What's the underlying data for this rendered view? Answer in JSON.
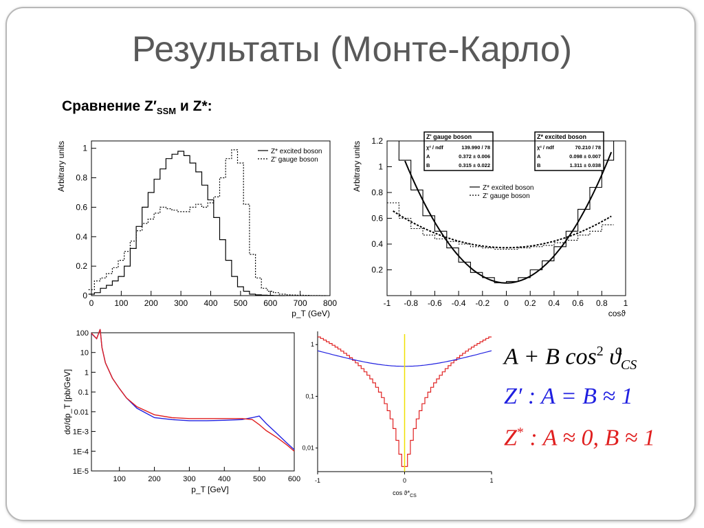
{
  "slide": {
    "title": "Результаты (Монте-Карло)",
    "subtitle_pre": "Сравнение Z′",
    "subtitle_sub": "SSM",
    "subtitle_post": "  и Z*:"
  },
  "formulas": {
    "line1": "A + B cos",
    "line1_sup": "2",
    "line1_theta": "ϑ",
    "line1_sub": "CS",
    "line2": "Z′ : A = B ≈ 1",
    "line2_color": "#1f1fe0",
    "line3_pre": "Z",
    "line3_sup": "*",
    "line3_post": " : A ≈ 0, B ≈ 1",
    "line3_color": "#e01f1f"
  },
  "chart_data": [
    {
      "id": "pt",
      "type": "line",
      "xlabel": "p_T (GeV)",
      "ylabel": "Arbitrary units",
      "xlim": [
        0,
        800
      ],
      "ylim": [
        0,
        1.05
      ],
      "xticks": [
        "0",
        "100",
        "200",
        "300",
        "400",
        "500",
        "600",
        "700",
        "800"
      ],
      "yticks": [
        "0",
        "0.2",
        "0.4",
        "0.6",
        "0.8",
        "1"
      ],
      "legend": [
        "Z* excited boson",
        "Z' gauge boson"
      ],
      "series": [
        {
          "name": "Z* excited boson",
          "style": "solid",
          "x": [
            0,
            20,
            40,
            60,
            80,
            100,
            120,
            140,
            160,
            180,
            200,
            220,
            240,
            260,
            280,
            300,
            320,
            340,
            360,
            380,
            400,
            420,
            440,
            460,
            480,
            500,
            520,
            540,
            560,
            580,
            600,
            620,
            640
          ],
          "values": [
            0.01,
            0.02,
            0.05,
            0.07,
            0.1,
            0.13,
            0.2,
            0.32,
            0.47,
            0.6,
            0.7,
            0.79,
            0.86,
            0.93,
            0.96,
            0.98,
            0.95,
            0.9,
            0.84,
            0.75,
            0.65,
            0.53,
            0.38,
            0.24,
            0.13,
            0.06,
            0.03,
            0.01,
            0.005,
            0.003,
            0.002,
            0.001,
            0
          ]
        },
        {
          "name": "Z' gauge boson",
          "style": "dashed",
          "x": [
            0,
            20,
            40,
            60,
            80,
            100,
            120,
            140,
            160,
            180,
            200,
            220,
            240,
            260,
            280,
            300,
            320,
            340,
            360,
            380,
            400,
            420,
            440,
            460,
            480,
            500,
            520,
            540,
            560,
            580,
            600,
            620,
            640,
            660,
            680,
            700,
            720,
            740,
            760,
            780
          ],
          "values": [
            0.04,
            0.1,
            0.12,
            0.15,
            0.19,
            0.24,
            0.3,
            0.37,
            0.44,
            0.49,
            0.52,
            0.56,
            0.6,
            0.59,
            0.58,
            0.57,
            0.57,
            0.6,
            0.62,
            0.6,
            0.63,
            0.67,
            0.8,
            0.93,
            0.99,
            0.9,
            0.62,
            0.28,
            0.12,
            0.05,
            0.03,
            0.02,
            0.01,
            0.005,
            0.004,
            0.003,
            0.002,
            0.001,
            0.001,
            0
          ]
        }
      ]
    },
    {
      "id": "cos",
      "type": "line",
      "xlabel": "cosϑ",
      "ylabel": "Arbitrary units",
      "xlim": [
        -1,
        1
      ],
      "ylim": [
        0,
        1.2
      ],
      "xticks": [
        "-1",
        "-0.8",
        "-0.6",
        "-0.4",
        "-0.2",
        "0",
        "0.2",
        "0.4",
        "0.6",
        "0.8",
        "1"
      ],
      "yticks": [
        "0.2",
        "0.4",
        "0.6",
        "0.8",
        "1",
        "1.2"
      ],
      "legend": [
        "Z* excited boson",
        "Z' gauge boson"
      ],
      "fit_boxes": [
        {
          "title": "Z' gauge boson",
          "rows": [
            [
              "χ² / ndf",
              "139.990 / 78"
            ],
            [
              "A",
              "0.372 ± 0.006"
            ],
            [
              "B",
              "0.315 ± 0.022"
            ]
          ]
        },
        {
          "title": "Z* excited boson",
          "rows": [
            [
              "χ² / ndf",
              "70.210 / 78"
            ],
            [
              "A",
              "0.098 ± 0.007"
            ],
            [
              "B",
              "1.311 ± 0.038"
            ]
          ]
        }
      ],
      "series": [
        {
          "name": "Z* excited boson",
          "style": "solid",
          "fit": {
            "A": 0.098,
            "B": 1.311
          },
          "x": [
            -0.95,
            -0.85,
            -0.75,
            -0.65,
            -0.55,
            -0.45,
            -0.35,
            -0.25,
            -0.15,
            -0.05,
            0.05,
            0.15,
            0.25,
            0.35,
            0.45,
            0.55,
            0.65,
            0.75,
            0.85,
            0.95
          ],
          "values": [
            1.2,
            1.05,
            0.82,
            0.62,
            0.5,
            0.37,
            0.26,
            0.18,
            0.14,
            0.1,
            0.11,
            0.14,
            0.2,
            0.27,
            0.38,
            0.5,
            0.67,
            0.84,
            1.05,
            1.2
          ]
        },
        {
          "name": "Z' gauge boson",
          "style": "dashed",
          "fit": {
            "A": 0.372,
            "B": 0.315
          },
          "x": [
            -0.95,
            -0.85,
            -0.75,
            -0.65,
            -0.55,
            -0.45,
            -0.35,
            -0.25,
            -0.15,
            -0.05,
            0.05,
            0.15,
            0.25,
            0.35,
            0.45,
            0.55,
            0.65,
            0.75,
            0.85
          ],
          "values": [
            0.72,
            0.6,
            0.52,
            0.47,
            0.44,
            0.42,
            0.4,
            0.38,
            0.37,
            0.36,
            0.36,
            0.37,
            0.38,
            0.39,
            0.41,
            0.43,
            0.47,
            0.5,
            0.55
          ]
        }
      ]
    },
    {
      "id": "dsigma",
      "type": "line",
      "xlabel": "p_T [GeV]",
      "ylabel": "dσ/dp_T [pb/GeV]",
      "log_y": true,
      "xlim": [
        20,
        600
      ],
      "ylim": [
        1e-05,
        100
      ],
      "xticks": [
        "100",
        "200",
        "300",
        "400",
        "500",
        "600"
      ],
      "yticks": [
        "100",
        "10",
        "1",
        "0.1",
        "0.01",
        "1E-3",
        "1E-4",
        "1E-5"
      ],
      "series": [
        {
          "name": "blue",
          "color": "#2020e0",
          "x": [
            20,
            35,
            45,
            50,
            60,
            80,
            100,
            120,
            150,
            200,
            250,
            300,
            350,
            400,
            450,
            480,
            500,
            520,
            550,
            580,
            600
          ],
          "values": [
            90,
            50,
            150,
            18,
            3,
            0.5,
            0.15,
            0.05,
            0.015,
            0.005,
            0.004,
            0.0035,
            0.0035,
            0.0037,
            0.004,
            0.005,
            0.006,
            0.0025,
            0.0008,
            0.00025,
            0.00012
          ]
        },
        {
          "name": "red",
          "color": "#e02020",
          "x": [
            20,
            35,
            45,
            50,
            60,
            80,
            100,
            120,
            150,
            200,
            250,
            300,
            350,
            400,
            450,
            480,
            500,
            520,
            550,
            580,
            600
          ],
          "values": [
            95,
            50,
            150,
            18,
            3,
            0.5,
            0.15,
            0.05,
            0.018,
            0.007,
            0.005,
            0.0045,
            0.0045,
            0.0045,
            0.0045,
            0.004,
            0.0022,
            0.0011,
            0.0005,
            0.0002,
            0.0001
          ]
        }
      ]
    },
    {
      "id": "cosfunc",
      "type": "line",
      "xlabel": "cos ϑ*",
      "xlabel_sub": "CS",
      "log_y": true,
      "xlim": [
        -1,
        1
      ],
      "ylim": [
        0.0035,
        1.8
      ],
      "xticks": [
        "-1",
        "0",
        "1"
      ],
      "yticks": [
        "1",
        "0,1",
        "0,01"
      ],
      "series": [
        {
          "name": "red (A≈0, B≈1)",
          "color": "#e02020",
          "fit": {
            "A": 0.004,
            "B": 1.45
          },
          "step": true
        },
        {
          "name": "blue (A=B)",
          "color": "#2020e0",
          "fit": {
            "A": 0.38,
            "B": 0.38
          }
        },
        {
          "name": "marker",
          "color": "#f0e000",
          "vertical_at": 0
        }
      ]
    }
  ]
}
